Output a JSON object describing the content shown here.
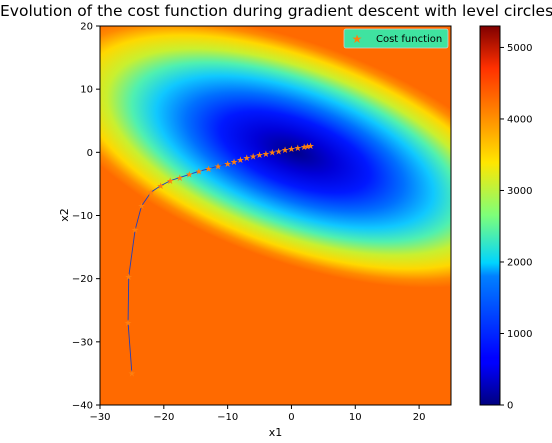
{
  "chart_data": {
    "type": "contour",
    "title": "Evolution of the cost function during gradient descent with level circles",
    "xlabel": "x1",
    "ylabel": "x2",
    "xlim": [
      -30,
      25
    ],
    "ylim": [
      -40,
      20
    ],
    "xticks": [
      -30,
      -20,
      -10,
      0,
      10,
      20
    ],
    "yticks": [
      -40,
      -30,
      -20,
      -10,
      0,
      10,
      20
    ],
    "grid": false,
    "legend": {
      "position": "top-right",
      "entries": [
        "Cost function"
      ]
    },
    "colorbar": {
      "colormap": "jet",
      "range": [
        0,
        5300
      ],
      "ticks": [
        0,
        1000,
        2000,
        3000,
        4000,
        5000
      ]
    },
    "marker_color": "#ff7f0e",
    "path_color": "#1f3fbf",
    "series": [
      {
        "name": "Cost function",
        "x": [
          -25,
          -25.6,
          -25.5,
          -24.5,
          -23.5,
          -22,
          -20.5,
          -19,
          -17.5,
          -16,
          -14.5,
          -13,
          -11.5,
          -10,
          -9,
          -8,
          -7,
          -6,
          -5,
          -4,
          -3,
          -2,
          -1,
          0,
          1,
          2,
          2.5,
          3
        ],
        "y": [
          -35,
          -27,
          -19.7,
          -12.3,
          -8.5,
          -6.3,
          -5.3,
          -4.5,
          -4,
          -3.5,
          -3,
          -2.6,
          -2.2,
          -1.8,
          -1.5,
          -1.2,
          -0.9,
          -0.6,
          -0.4,
          -0.2,
          0,
          0.2,
          0.4,
          0.55,
          0.7,
          0.85,
          0.95,
          1.05
        ]
      }
    ]
  }
}
